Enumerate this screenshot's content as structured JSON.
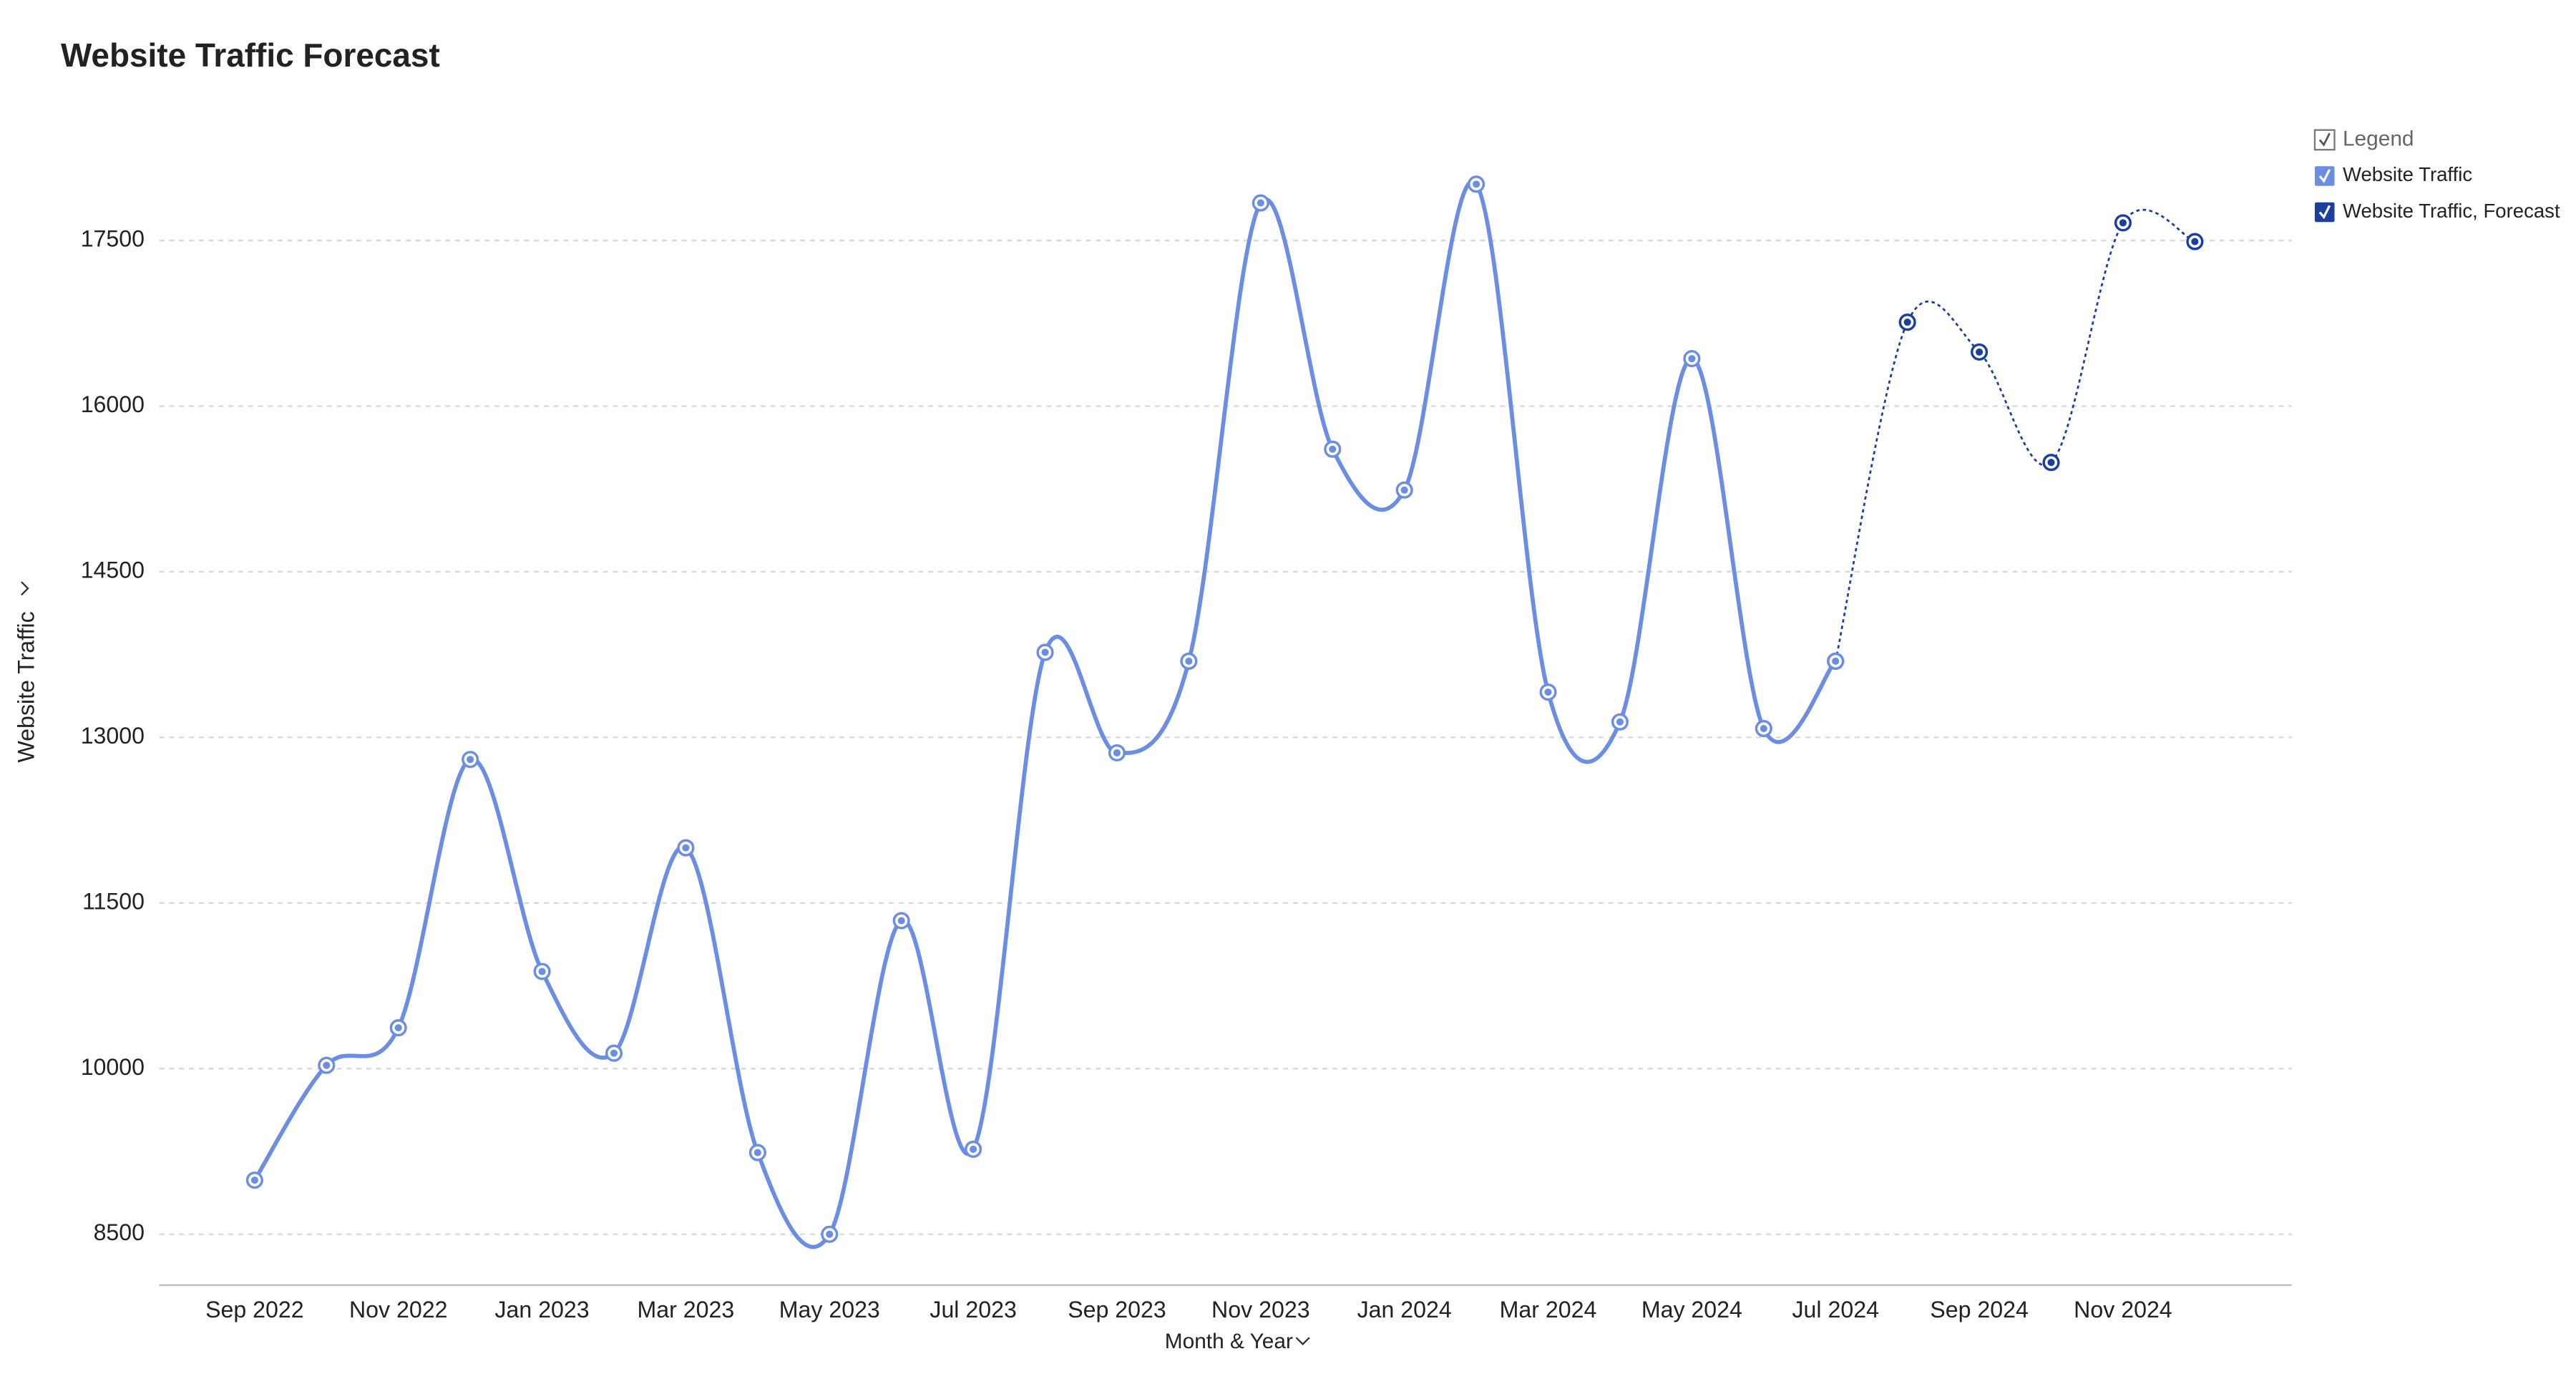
{
  "chart_data": {
    "type": "line",
    "title": "Website Traffic Forecast",
    "x_label": "Month & Year",
    "y_label": "Website Traffic",
    "legend_title": "Legend",
    "legend_position": "top-right",
    "grid": true,
    "categories": [
      "Sep 2022",
      null,
      "Nov 2022",
      null,
      "Jan 2023",
      null,
      "Mar 2023",
      null,
      "May 2023",
      null,
      "Jul 2023",
      null,
      "Sep 2023",
      null,
      "Nov 2023",
      null,
      "Jan 2024",
      null,
      "Mar 2024",
      null,
      "May 2024",
      null,
      "Jul 2024",
      null,
      "Sep 2024",
      null,
      "Nov 2024",
      null
    ],
    "series": [
      {
        "name": "Website Traffic",
        "color": "#6b8de3",
        "style": "solid",
        "values": [
          8990,
          10030,
          10370,
          12800,
          10880,
          10140,
          12000,
          9240,
          8500,
          11340,
          9270,
          13770,
          12860,
          13690,
          17840,
          15610,
          15240,
          18010,
          13410,
          13140,
          16430,
          13080,
          13690,
          null,
          null,
          null,
          null,
          null
        ]
      },
      {
        "name": "Website Traffic, Forecast",
        "color": "#1b3fa0",
        "style": "dotted",
        "values": [
          null,
          null,
          null,
          null,
          null,
          null,
          null,
          null,
          null,
          null,
          null,
          null,
          null,
          null,
          null,
          null,
          null,
          null,
          null,
          null,
          null,
          null,
          13690,
          16760,
          16490,
          15490,
          17660,
          17490
        ]
      }
    ],
    "ylim": [
      8040,
      18560
    ],
    "yticks": [
      8500,
      10000,
      11500,
      13000,
      14500,
      16000,
      17500
    ]
  }
}
